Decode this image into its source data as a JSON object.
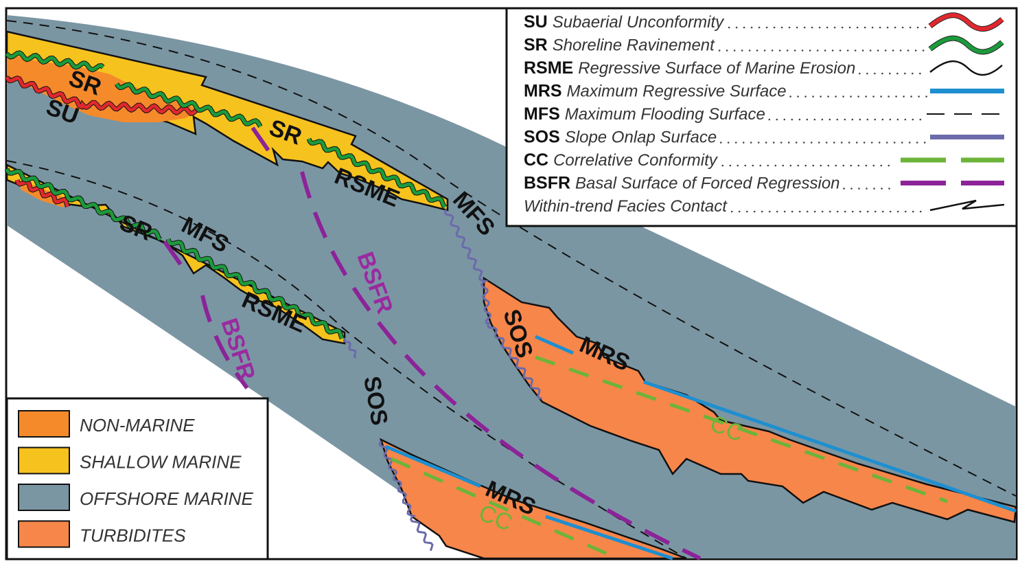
{
  "colors": {
    "offshore": "#7b96a3",
    "shallow": "#f6c21e",
    "nonmarine": "#f58a2a",
    "turbidite": "#f7864a",
    "su": "#e0282e",
    "sr": "#1c9a3c",
    "mrs": "#1e8fd0",
    "sos": "#6b6aaa",
    "cc": "#6cb43a",
    "bsfr": "#8c2398"
  },
  "labels": {
    "sr1": "SR",
    "su": "SU",
    "sr2": "SR",
    "rsme1": "RSME",
    "mfs1": "MFS",
    "sr3": "SR",
    "mfs2": "MFS",
    "rsme2": "RSME",
    "bsfr1": "BSFR",
    "bsfr2": "BSFR",
    "sos1": "SOS",
    "sos2": "SOS",
    "mrs1": "MRS",
    "cc1": "CC",
    "mrs2": "MRS",
    "cc2": "CC"
  },
  "surface_legend": [
    {
      "abbr": "SU",
      "name": "Subaerial Unconformity",
      "abbr_color": "#111111",
      "symbol": "red-wavy"
    },
    {
      "abbr": "SR",
      "name": "Shoreline Ravinement",
      "abbr_color": "#111111",
      "symbol": "green-wavy"
    },
    {
      "abbr": "RSME",
      "name": "Regressive Surface of Marine Erosion",
      "abbr_color": "#111111",
      "symbol": "black-wavy"
    },
    {
      "abbr": "MRS",
      "name": "Maximum Regressive Surface",
      "abbr_color": "#111111",
      "symbol": "blue-line"
    },
    {
      "abbr": "MFS",
      "name": "Maximum Flooding Surface",
      "abbr_color": "#111111",
      "symbol": "black-dashed"
    },
    {
      "abbr": "SOS",
      "name": "Slope Onlap Surface",
      "abbr_color": "#111111",
      "symbol": "purple-line"
    },
    {
      "abbr": "CC",
      "name": "Correlative Conformity",
      "abbr_color": "#6cb43a",
      "symbol": "green-dashed"
    },
    {
      "abbr": "BSFR",
      "name": "Basal Surface of Forced Regression",
      "abbr_color": "#b0208f",
      "symbol": "magenta-dashed"
    },
    {
      "abbr": "",
      "name": "Within-trend Facies Contact",
      "abbr_color": "#111111",
      "symbol": "zigzag"
    }
  ],
  "facies_legend": [
    {
      "label": "NON-MARINE",
      "color": "#f58a2a"
    },
    {
      "label": "SHALLOW MARINE",
      "color": "#f6c21e"
    },
    {
      "label": "OFFSHORE MARINE",
      "color": "#7b96a3"
    },
    {
      "label": "TURBIDITES",
      "color": "#f7864a"
    }
  ]
}
